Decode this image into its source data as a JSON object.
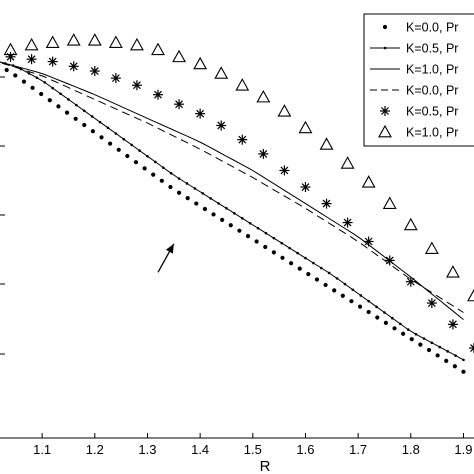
{
  "chart_data": {
    "type": "line",
    "xlabel": "R",
    "ylabel": "",
    "title": "",
    "xlim": [
      1.0,
      1.9
    ],
    "x_ticks": [
      "1.1",
      "1.2",
      "1.3",
      "1.4",
      "1.5",
      "1.6",
      "1.7",
      "1.8",
      "1.9"
    ],
    "grid": false,
    "legend": "top-right",
    "series": [
      {
        "name": "K=0.0, Pr",
        "marker": "dot",
        "line": "none",
        "x": [
          1.0,
          1.05,
          1.1,
          1.15,
          1.2,
          1.25,
          1.3,
          1.35,
          1.4,
          1.45,
          1.5,
          1.55,
          1.6,
          1.65,
          1.7,
          1.75,
          1.8,
          1.85,
          1.9
        ],
        "y": [
          0.95,
          0.88,
          0.8,
          0.72,
          0.64,
          0.56,
          0.48,
          0.4,
          0.33,
          0.26,
          0.19,
          0.12,
          0.05,
          -0.02,
          -0.09,
          -0.16,
          -0.23,
          -0.3,
          -0.37
        ]
      },
      {
        "name": "K=0.5, Pr",
        "marker": "small-dot",
        "line": "solid",
        "x": [
          1.0,
          1.05,
          1.1,
          1.15,
          1.2,
          1.25,
          1.3,
          1.35,
          1.4,
          1.45,
          1.5,
          1.55,
          1.6,
          1.65,
          1.7,
          1.75,
          1.8,
          1.85,
          1.9
        ],
        "y": [
          0.95,
          0.92,
          0.86,
          0.78,
          0.7,
          0.62,
          0.54,
          0.46,
          0.39,
          0.32,
          0.25,
          0.18,
          0.11,
          0.04,
          -0.04,
          -0.12,
          -0.2,
          -0.26,
          -0.32
        ]
      },
      {
        "name": "K=1.0, Pr",
        "marker": "none",
        "line": "solid",
        "x": [
          1.0,
          1.1,
          1.2,
          1.3,
          1.4,
          1.5,
          1.6,
          1.7,
          1.8,
          1.9
        ],
        "y": [
          0.95,
          0.89,
          0.8,
          0.7,
          0.6,
          0.48,
          0.34,
          0.2,
          0.03,
          -0.15
        ]
      },
      {
        "name": "K=0.0, Pr",
        "marker": "none",
        "line": "dashed",
        "x": [
          1.0,
          1.1,
          1.2,
          1.3,
          1.4,
          1.5,
          1.6,
          1.7,
          1.8,
          1.9
        ],
        "y": [
          0.95,
          0.88,
          0.78,
          0.68,
          0.57,
          0.45,
          0.32,
          0.18,
          0.02,
          -0.12
        ]
      },
      {
        "name": "K=0.5, Pr",
        "marker": "asterisk",
        "line": "none",
        "x": [
          1.0,
          1.04,
          1.08,
          1.12,
          1.16,
          1.2,
          1.24,
          1.28,
          1.32,
          1.36,
          1.4,
          1.44,
          1.48,
          1.52,
          1.56,
          1.6,
          1.64,
          1.68,
          1.72,
          1.76,
          1.8,
          1.84,
          1.88,
          1.92
        ],
        "y": [
          0.95,
          0.96,
          0.95,
          0.94,
          0.92,
          0.9,
          0.87,
          0.84,
          0.8,
          0.76,
          0.72,
          0.67,
          0.61,
          0.55,
          0.48,
          0.41,
          0.34,
          0.26,
          0.18,
          0.1,
          0.01,
          -0.08,
          -0.17,
          -0.27
        ]
      },
      {
        "name": "K=1.0, Pr",
        "marker": "triangle",
        "line": "none",
        "x": [
          1.0,
          1.04,
          1.08,
          1.12,
          1.16,
          1.2,
          1.24,
          1.28,
          1.32,
          1.36,
          1.4,
          1.44,
          1.48,
          1.52,
          1.56,
          1.6,
          1.64,
          1.68,
          1.72,
          1.76,
          1.8,
          1.84,
          1.88,
          1.92
        ],
        "y": [
          0.95,
          0.99,
          1.01,
          1.02,
          1.03,
          1.03,
          1.02,
          1.01,
          0.99,
          0.96,
          0.93,
          0.89,
          0.84,
          0.79,
          0.73,
          0.66,
          0.59,
          0.51,
          0.43,
          0.34,
          0.25,
          0.15,
          0.05,
          -0.05
        ]
      }
    ],
    "ylim": [
      -0.65,
      1.2
    ],
    "annotations": [
      {
        "type": "arrow",
        "from": [
          1.32,
          0.05
        ],
        "to": [
          1.35,
          0.17
        ]
      }
    ]
  }
}
